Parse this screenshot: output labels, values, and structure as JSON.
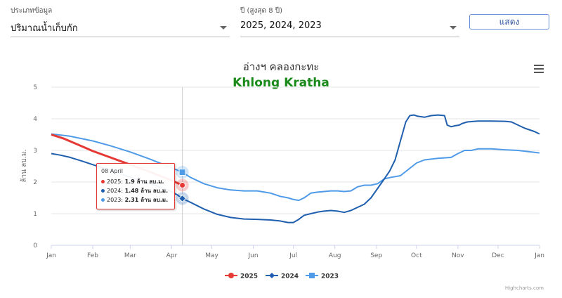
{
  "filters": {
    "type_label": "ประเภทข้อมูล",
    "type_value": "ปริมาณน้ำเก็บกัก",
    "year_label": "ปี (สูงสุด 8 ปี)",
    "year_value": "2025, 2024, 2023",
    "show_button": "แสดง"
  },
  "tooltip": {
    "date": "08 April",
    "rows": [
      {
        "label": "2025:",
        "value": "1.9 ล้าน ลบ.ม."
      },
      {
        "label": "2024:",
        "value": "1.48 ล้าน ลบ.ม."
      },
      {
        "label": "2023:",
        "value": "2.31 ล้าน ลบ.ม."
      }
    ]
  },
  "credit": "Highcharts.com",
  "chart_data": {
    "type": "line",
    "title": "อ่างฯ คลองกะทะ",
    "subtitle": "Khlong Kratha",
    "ylabel": "ล้าน ลบ.ม.",
    "ylim": [
      0,
      5
    ],
    "yticks": [
      0,
      1,
      2,
      3,
      4,
      5
    ],
    "xlim": [
      1,
      366
    ],
    "xtick_labels": [
      "Jan",
      "Feb",
      "Mar",
      "Apr",
      "May",
      "Jun",
      "Jul",
      "Aug",
      "Sep",
      "Oct",
      "Nov",
      "Dec",
      "Jan"
    ],
    "xtick_days": [
      1,
      32,
      60,
      91,
      121,
      152,
      182,
      213,
      244,
      274,
      305,
      335,
      366
    ],
    "crosshair_day": 99,
    "legend_position": "bottom-center",
    "grid": true,
    "series": [
      {
        "name": "2025",
        "color": "#e53935",
        "marker": "circle",
        "x": [
          1,
          10,
          20,
          32,
          45,
          60,
          75,
          91,
          99
        ],
        "y": [
          3.5,
          3.38,
          3.2,
          2.98,
          2.78,
          2.55,
          2.32,
          2.05,
          1.9
        ]
      },
      {
        "name": "2024",
        "color": "#1f5fae",
        "marker": "diamond",
        "x": [
          1,
          8,
          15,
          25,
          32,
          45,
          60,
          75,
          88,
          95,
          99,
          105,
          115,
          125,
          135,
          145,
          155,
          165,
          172,
          178,
          182,
          186,
          190,
          195,
          200,
          205,
          210,
          215,
          220,
          225,
          230,
          235,
          240,
          245,
          250,
          254,
          258,
          262,
          266,
          269,
          272,
          275,
          280,
          285,
          290,
          295,
          297,
          300,
          303,
          306,
          308,
          312,
          320,
          330,
          340,
          345,
          350,
          355,
          362,
          366
        ],
        "y": [
          2.9,
          2.85,
          2.78,
          2.65,
          2.55,
          2.38,
          2.15,
          1.95,
          1.75,
          1.6,
          1.48,
          1.36,
          1.15,
          0.98,
          0.88,
          0.83,
          0.82,
          0.8,
          0.77,
          0.72,
          0.72,
          0.82,
          0.95,
          1.0,
          1.05,
          1.08,
          1.1,
          1.08,
          1.04,
          1.1,
          1.2,
          1.3,
          1.5,
          1.8,
          2.1,
          2.35,
          2.7,
          3.3,
          3.9,
          4.1,
          4.12,
          4.08,
          4.05,
          4.1,
          4.12,
          4.1,
          3.8,
          3.75,
          3.78,
          3.8,
          3.85,
          3.9,
          3.93,
          3.93,
          3.92,
          3.9,
          3.8,
          3.7,
          3.6,
          3.52
        ]
      },
      {
        "name": "2023",
        "color": "#4f9be8",
        "marker": "square",
        "x": [
          1,
          15,
          32,
          45,
          60,
          75,
          91,
          99,
          105,
          115,
          125,
          135,
          145,
          155,
          165,
          172,
          178,
          182,
          186,
          190,
          195,
          200,
          205,
          210,
          215,
          220,
          225,
          230,
          235,
          240,
          245,
          250,
          255,
          262,
          268,
          274,
          280,
          290,
          300,
          305,
          310,
          315,
          320,
          330,
          340,
          350,
          360,
          366
        ],
        "y": [
          3.52,
          3.45,
          3.3,
          3.15,
          2.95,
          2.72,
          2.45,
          2.31,
          2.15,
          1.95,
          1.82,
          1.75,
          1.72,
          1.72,
          1.65,
          1.55,
          1.5,
          1.45,
          1.42,
          1.5,
          1.65,
          1.68,
          1.7,
          1.72,
          1.72,
          1.7,
          1.72,
          1.85,
          1.9,
          1.9,
          1.95,
          2.1,
          2.15,
          2.2,
          2.4,
          2.6,
          2.7,
          2.75,
          2.78,
          2.9,
          3.0,
          3.0,
          3.05,
          3.05,
          3.02,
          3.0,
          2.95,
          2.92
        ]
      }
    ]
  }
}
